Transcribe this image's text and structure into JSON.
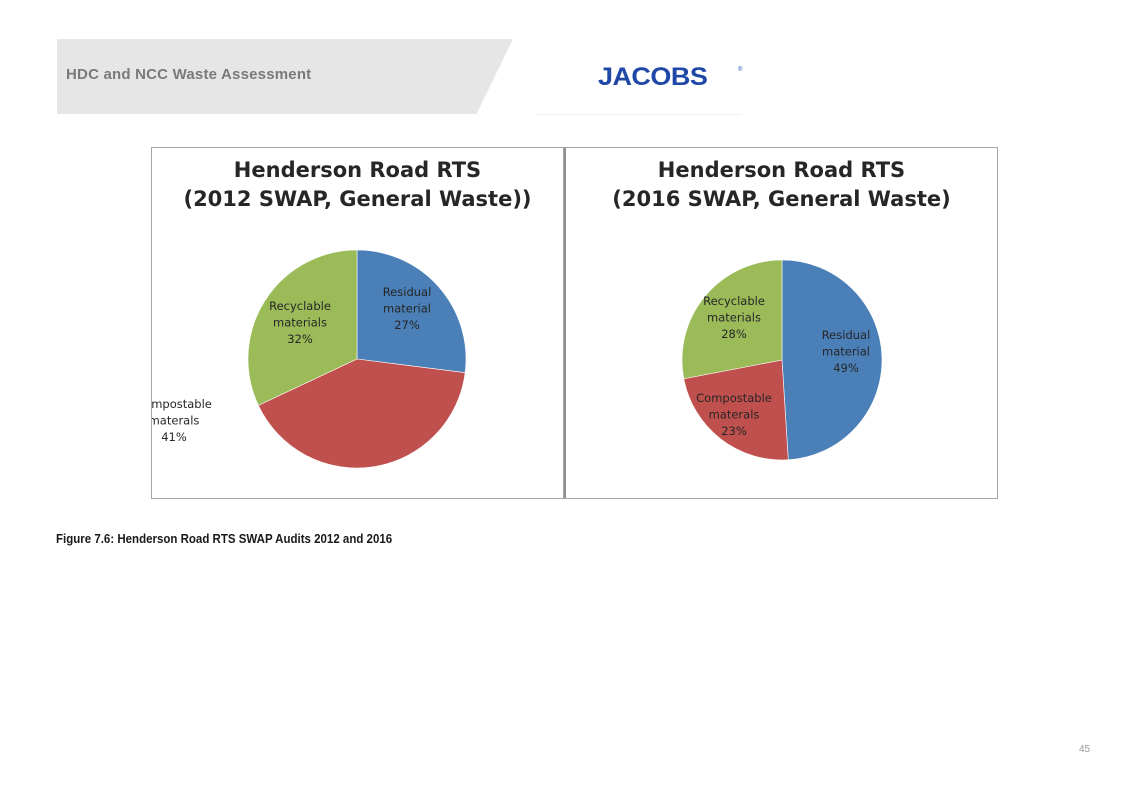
{
  "header": {
    "title": "HDC and NCC Waste Assessment"
  },
  "logo": {
    "text": "JACOBS",
    "registered": "®",
    "color": "#1f48a6"
  },
  "colors": {
    "residual": "#4a7fb8",
    "compostable": "#c0504d",
    "recyclable": "#9bbb59"
  },
  "chart_data": [
    {
      "type": "pie",
      "title_lines": [
        "Henderson Road RTS",
        "(2012 SWAP, General Waste))"
      ],
      "slices": [
        {
          "label_lines": [
            "Residual",
            "material"
          ],
          "pct_label": "27%",
          "value": 27,
          "color": "#4a7fb8"
        },
        {
          "label_lines": [
            "Compostable",
            "materals"
          ],
          "pct_label": "41%",
          "value": 41,
          "color": "#c0504d"
        },
        {
          "label_lines": [
            "Recyclable",
            "materials"
          ],
          "pct_label": "32%",
          "value": 32,
          "color": "#9bbb59"
        }
      ]
    },
    {
      "type": "pie",
      "title_lines": [
        "Henderson Road RTS",
        "(2016 SWAP, General Waste)"
      ],
      "slices": [
        {
          "label_lines": [
            "Residual",
            "material"
          ],
          "pct_label": "49%",
          "value": 49,
          "color": "#4a7fb8"
        },
        {
          "label_lines": [
            "Compostable",
            "materals"
          ],
          "pct_label": "23%",
          "value": 23,
          "color": "#c0504d"
        },
        {
          "label_lines": [
            "Recyclable",
            "materials"
          ],
          "pct_label": "28%",
          "value": 28,
          "color": "#9bbb59"
        }
      ]
    }
  ],
  "caption": "Figure 7.6: Henderson Road RTS SWAP Audits 2012 and 2016",
  "page_number": "45"
}
